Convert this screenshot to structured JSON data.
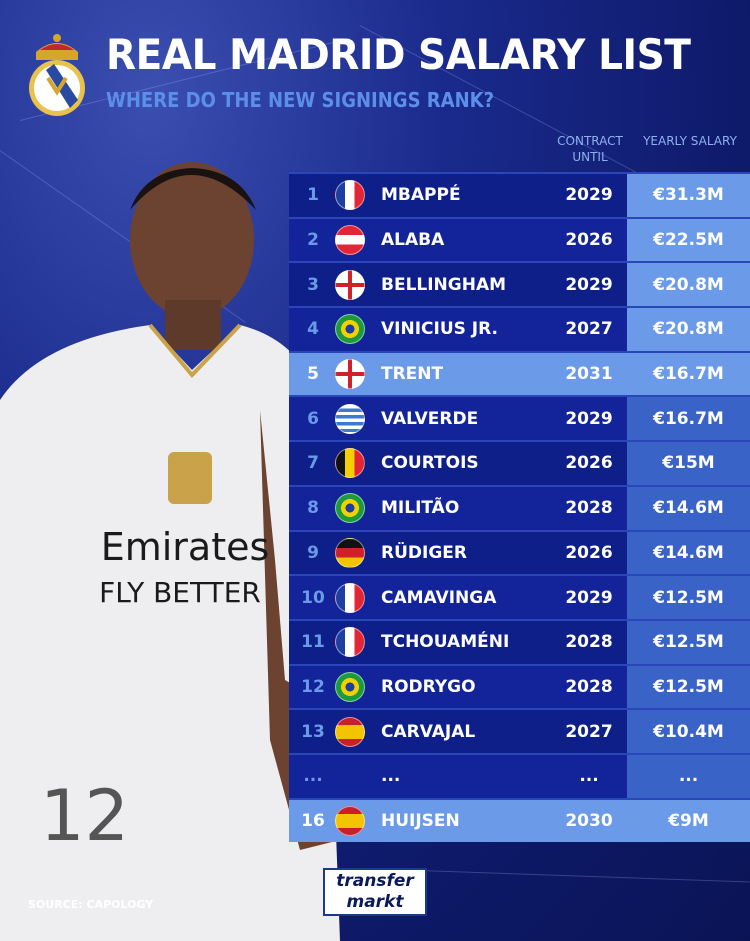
{
  "header": {
    "title": "REAL MADRID SALARY LIST",
    "subtitle": "WHERE DO THE NEW SIGNINGS RANK?"
  },
  "columns": {
    "contract": "CONTRACT UNTIL",
    "salary": "YEARLY SALARY"
  },
  "rows": [
    {
      "rank": "1",
      "flag": "france",
      "name": "MBAPPÉ",
      "until": "2029",
      "salary": "€31.3M"
    },
    {
      "rank": "2",
      "flag": "austria",
      "name": "ALABA",
      "until": "2026",
      "salary": "€22.5M"
    },
    {
      "rank": "3",
      "flag": "england",
      "name": "BELLINGHAM",
      "until": "2029",
      "salary": "€20.8M"
    },
    {
      "rank": "4",
      "flag": "brazil",
      "name": "VINICIUS JR.",
      "until": "2027",
      "salary": "€20.8M"
    },
    {
      "rank": "5",
      "flag": "england",
      "name": "TRENT",
      "until": "2031",
      "salary": "€16.7M",
      "highlight": true
    },
    {
      "rank": "6",
      "flag": "uruguay",
      "name": "VALVERDE",
      "until": "2029",
      "salary": "€16.7M"
    },
    {
      "rank": "7",
      "flag": "belgium",
      "name": "COURTOIS",
      "until": "2026",
      "salary": "€15M"
    },
    {
      "rank": "8",
      "flag": "brazil",
      "name": "MILITÃO",
      "until": "2028",
      "salary": "€14.6M"
    },
    {
      "rank": "9",
      "flag": "germany",
      "name": "RÜDIGER",
      "until": "2026",
      "salary": "€14.6M"
    },
    {
      "rank": "10",
      "flag": "france",
      "name": "CAMAVINGA",
      "until": "2029",
      "salary": "€12.5M"
    },
    {
      "rank": "11",
      "flag": "france",
      "name": "TCHOUAMÉNI",
      "until": "2028",
      "salary": "€12.5M"
    },
    {
      "rank": "12",
      "flag": "brazil",
      "name": "RODRYGO",
      "until": "2028",
      "salary": "€12.5M"
    },
    {
      "rank": "13",
      "flag": "spain",
      "name": "CARVAJAL",
      "until": "2027",
      "salary": "€10.4M"
    },
    {
      "rank": "...",
      "flag": "",
      "name": "...",
      "until": "...",
      "salary": "..."
    },
    {
      "rank": "16",
      "flag": "spain",
      "name": "HUIJSEN",
      "until": "2030",
      "salary": "€9M",
      "highlight": true
    }
  ],
  "footer": {
    "source": "SOURCE: CAPOLOGY",
    "logo_line1": "transfer",
    "logo_line2": "markt"
  },
  "jersey": {
    "sponsor": "Emirates",
    "slogan": "FLY BETTER",
    "number": "12"
  },
  "colors": {
    "bg": "#0e1a6a",
    "row": "#0e1f8a",
    "highlight": "#6a9ae8",
    "accent": "#5c8fe8"
  }
}
